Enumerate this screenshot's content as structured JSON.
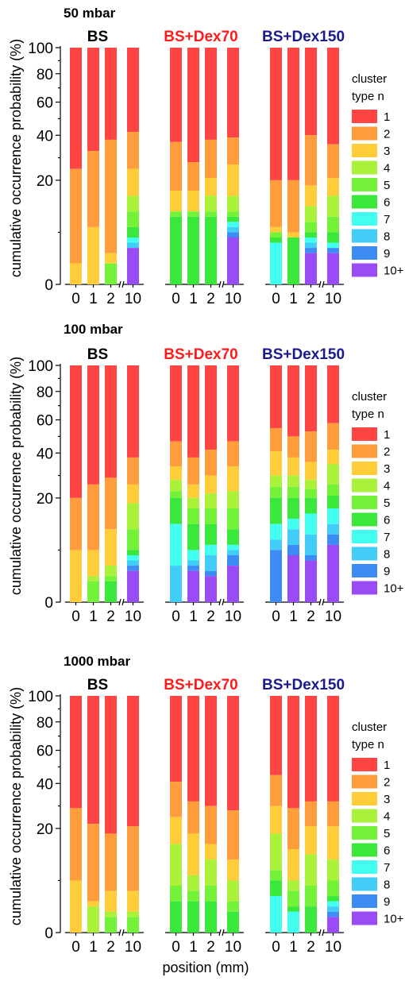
{
  "chart_data": [
    {
      "type": "stacked-bar",
      "panel_title": "50 mbar",
      "ylabel": "cumulative occurrence probability (%)",
      "y_ticks": [
        "0",
        "20",
        "40",
        "60",
        "80",
        "100"
      ],
      "y_scale": "nonlinear (expanded near 0)",
      "legend": {
        "title_line1": "cluster",
        "title_line2": "type n",
        "placement": "right"
      },
      "groups": [
        {
          "title": "BS",
          "title_color": "#000000",
          "categories": [
            "0",
            "1",
            "2",
            "10"
          ],
          "bars": [
            {
              "x": "0",
              "values": [
                100,
                25,
                4,
                0,
                0,
                0,
                0,
                0,
                0,
                0
              ]
            },
            {
              "x": "1",
              "values": [
                100,
                33,
                11,
                0,
                0,
                0,
                0,
                0,
                0,
                0
              ]
            },
            {
              "x": "2",
              "values": [
                100,
                38,
                6,
                4,
                4,
                0,
                0,
                0,
                0,
                0
              ]
            },
            {
              "x": "10",
              "values": [
                100,
                42,
                25,
                17,
                14,
                11,
                9,
                8,
                7,
                7
              ]
            }
          ]
        },
        {
          "title": "BS+Dex70",
          "title_color": "#ff1a1a",
          "categories": [
            "0",
            "1",
            "2",
            "10"
          ],
          "bars": [
            {
              "x": "0",
              "values": [
                100,
                37,
                18,
                14,
                14,
                13,
                0,
                0,
                0,
                0
              ]
            },
            {
              "x": "1",
              "values": [
                100,
                28,
                18,
                14,
                14,
                13,
                0,
                0,
                0,
                0
              ]
            },
            {
              "x": "2",
              "values": [
                100,
                38,
                21,
                17,
                14,
                13,
                0,
                0,
                0,
                0
              ]
            },
            {
              "x": "10",
              "values": [
                100,
                39,
                27,
                17,
                14,
                13,
                12,
                11,
                10,
                9
              ]
            }
          ]
        },
        {
          "title": "BS+Dex150",
          "title_color": "#1a1a8c",
          "categories": [
            "0",
            "1",
            "2",
            "10"
          ],
          "bars": [
            {
              "x": "0",
              "values": [
                100,
                20,
                11,
                10,
                10,
                9,
                8,
                0,
                0,
                0
              ]
            },
            {
              "x": "1",
              "values": [
                100,
                20,
                10,
                9,
                9,
                9,
                0,
                0,
                0,
                0
              ]
            },
            {
              "x": "2",
              "values": [
                100,
                40,
                19,
                15,
                12,
                10,
                9,
                8,
                7,
                6
              ]
            },
            {
              "x": "10",
              "values": [
                100,
                36,
                21,
                17,
                13,
                10,
                8,
                7,
                7,
                6
              ]
            }
          ]
        }
      ]
    },
    {
      "type": "stacked-bar",
      "panel_title": "100 mbar",
      "ylabel": "cumulative occurrence probability (%)",
      "y_ticks": [
        "0",
        "20",
        "40",
        "60",
        "80",
        "100"
      ],
      "y_scale": "nonlinear (expanded near 0)",
      "legend": {
        "title_line1": "cluster",
        "title_line2": "type n",
        "placement": "right"
      },
      "groups": [
        {
          "title": "BS",
          "title_color": "#000000",
          "categories": [
            "0",
            "1",
            "2",
            "10"
          ],
          "bars": [
            {
              "x": "0",
              "values": [
                100,
                20,
                10,
                0,
                0,
                0,
                0,
                0,
                0,
                0
              ]
            },
            {
              "x": "1",
              "values": [
                100,
                26,
                10,
                5,
                4,
                0,
                0,
                0,
                0,
                0
              ]
            },
            {
              "x": "2",
              "values": [
                100,
                29,
                14,
                7,
                5,
                4,
                0,
                0,
                0,
                0
              ]
            },
            {
              "x": "10",
              "values": [
                100,
                38,
                26,
                19,
                14,
                10,
                9,
                8,
                7,
                6
              ]
            }
          ]
        },
        {
          "title": "BS+Dex70",
          "title_color": "#ff1a1a",
          "categories": [
            "0",
            "1",
            "2",
            "10"
          ],
          "bars": [
            {
              "x": "0",
              "values": [
                100,
                47,
                34,
                28,
                23,
                20,
                15,
                7,
                0,
                0
              ]
            },
            {
              "x": "1",
              "values": [
                100,
                38,
                26,
                20,
                18,
                15,
                10,
                8,
                7,
                6
              ]
            },
            {
              "x": "2",
              "values": [
                100,
                42,
                30,
                22,
                18,
                15,
                11,
                9,
                6,
                5
              ]
            },
            {
              "x": "10",
              "values": [
                100,
                47,
                34,
                23,
                18,
                14,
                11,
                10,
                9,
                7
              ]
            }
          ]
        },
        {
          "title": "BS+Dex150",
          "title_color": "#1a1a8c",
          "categories": [
            "0",
            "1",
            "2",
            "10"
          ],
          "bars": [
            {
              "x": "0",
              "values": [
                100,
                55,
                41,
                30,
                25,
                20,
                15,
                12,
                10,
                0
              ]
            },
            {
              "x": "1",
              "values": [
                100,
                50,
                38,
                30,
                25,
                20,
                16,
                14,
                11,
                9
              ]
            },
            {
              "x": "2",
              "values": [
                100,
                53,
                36,
                28,
                24,
                20,
                17,
                13,
                9,
                8
              ]
            },
            {
              "x": "10",
              "values": [
                100,
                58,
                42,
                35,
                26,
                21,
                18,
                15,
                13,
                11
              ]
            }
          ]
        }
      ]
    },
    {
      "type": "stacked-bar",
      "panel_title": "1000 mbar",
      "ylabel": "cumulative occurrence probability (%)",
      "y_ticks": [
        "0",
        "20",
        "40",
        "60",
        "80",
        "100"
      ],
      "y_scale": "nonlinear (expanded near 0)",
      "x_axis_label": "position (mm)",
      "legend": {
        "title_line1": "cluster",
        "title_line2": "type n",
        "placement": "right"
      },
      "groups": [
        {
          "title": "BS",
          "title_color": "#000000",
          "categories": [
            "0",
            "1",
            "2",
            "10"
          ],
          "bars": [
            {
              "x": "0",
              "values": [
                100,
                29,
                10,
                0,
                0,
                0,
                0,
                0,
                0,
                0
              ]
            },
            {
              "x": "1",
              "values": [
                100,
                22,
                6,
                5,
                0,
                0,
                0,
                0,
                0,
                0
              ]
            },
            {
              "x": "2",
              "values": [
                100,
                19,
                8,
                4,
                3,
                0,
                0,
                0,
                0,
                0
              ]
            },
            {
              "x": "10",
              "values": [
                100,
                21,
                8,
                4,
                3,
                0,
                0,
                0,
                0,
                0
              ]
            }
          ]
        },
        {
          "title": "BS+Dex70",
          "title_color": "#ff1a1a",
          "categories": [
            "0",
            "1",
            "2",
            "10"
          ],
          "bars": [
            {
              "x": "0",
              "values": [
                100,
                41,
                25,
                17,
                9,
                6,
                0,
                0,
                0,
                0
              ]
            },
            {
              "x": "1",
              "values": [
                100,
                32,
                19,
                11,
                8,
                6,
                0,
                0,
                0,
                0
              ]
            },
            {
              "x": "2",
              "values": [
                100,
                30,
                17,
                14,
                9,
                6,
                0,
                0,
                0,
                0
              ]
            },
            {
              "x": "10",
              "values": [
                100,
                28,
                14,
                10,
                6,
                4,
                0,
                0,
                0,
                0
              ]
            }
          ]
        },
        {
          "title": "BS+Dex150",
          "title_color": "#1a1a8c",
          "categories": [
            "0",
            "1",
            "2",
            "10"
          ],
          "bars": [
            {
              "x": "0",
              "values": [
                100,
                45,
                30,
                19,
                12,
                10,
                7,
                0,
                0,
                0
              ]
            },
            {
              "x": "1",
              "values": [
                100,
                29,
                16,
                10,
                8,
                5,
                4,
                0,
                0,
                0
              ]
            },
            {
              "x": "2",
              "values": [
                100,
                32,
                21,
                15,
                9,
                5,
                0,
                0,
                0,
                0
              ]
            },
            {
              "x": "10",
              "values": [
                100,
                32,
                21,
                14,
                10,
                7,
                6,
                5,
                4,
                3
              ]
            }
          ]
        }
      ]
    }
  ],
  "series_names": [
    "1",
    "2",
    "3",
    "4",
    "5",
    "6",
    "7",
    "8",
    "9",
    "10+"
  ],
  "colors": [
    "#ff4444",
    "#ff9c3c",
    "#ffcd3a",
    "#aaf23a",
    "#74f23a",
    "#39e83a",
    "#42fff0",
    "#42ccf8",
    "#3c8cf4",
    "#9a4cf4"
  ]
}
